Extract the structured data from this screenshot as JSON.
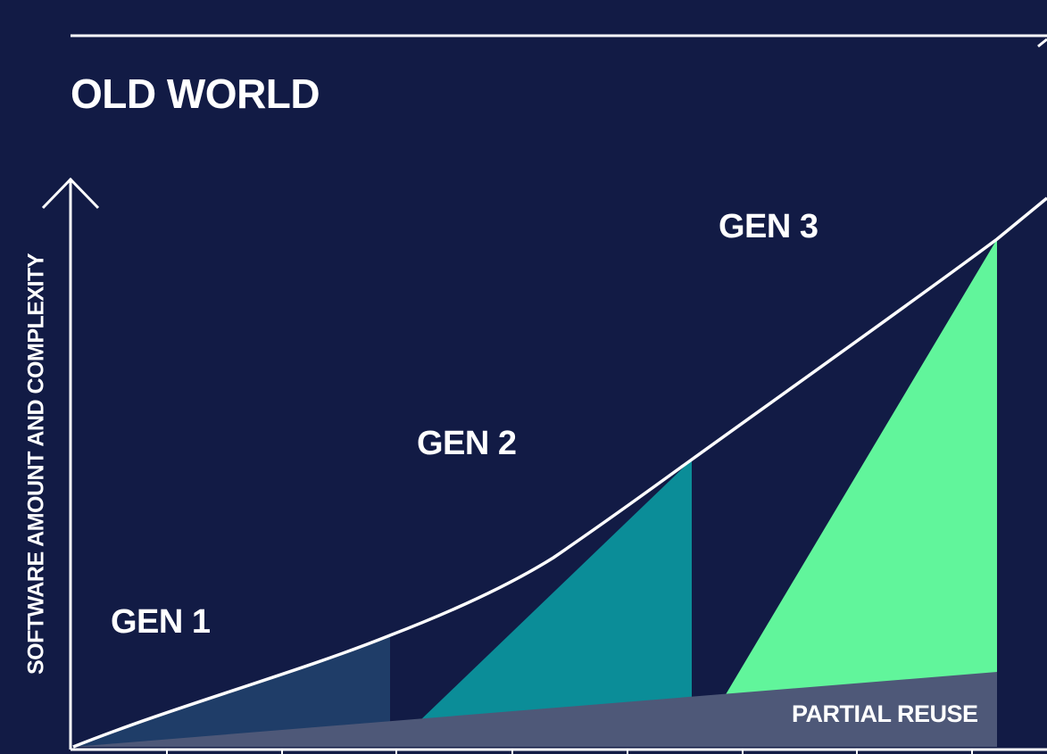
{
  "title": "OLD WORLD",
  "y_axis_label": "SOFTWARE AMOUNT AND COMPLEXITY",
  "generations": [
    {
      "label": "GEN 1",
      "color": "#1f3d68"
    },
    {
      "label": "GEN 2",
      "color": "#0b8d98"
    },
    {
      "label": "GEN 3",
      "color": "#61f59b"
    }
  ],
  "partial_reuse": {
    "label": "PARTIAL REUSE",
    "color": "#4e5878"
  },
  "colors": {
    "background": "#121b45",
    "lines": "#ffffff"
  }
}
